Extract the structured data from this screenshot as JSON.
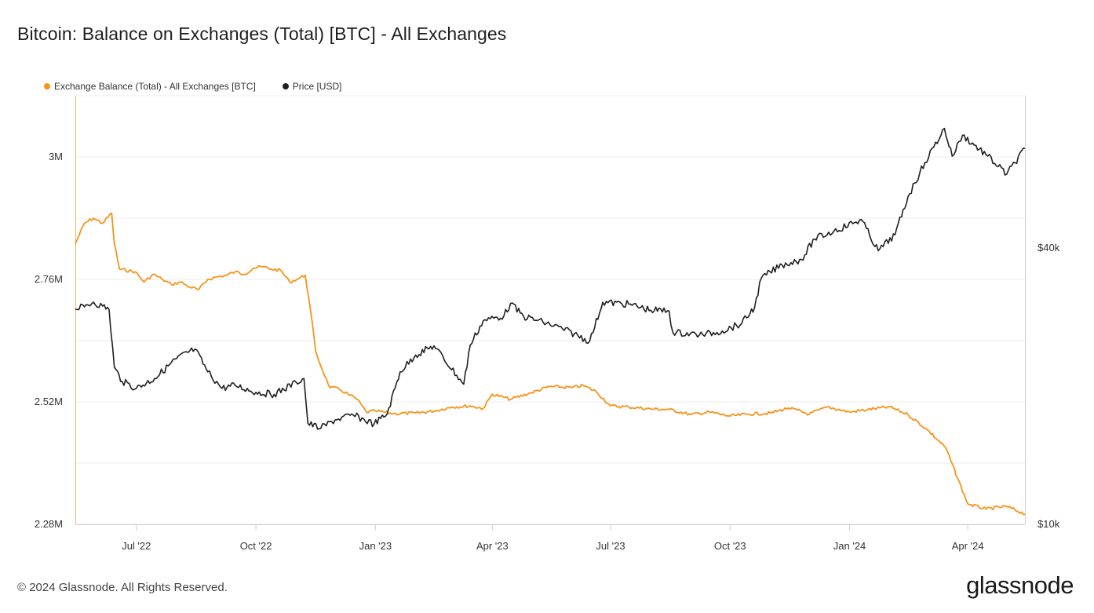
{
  "header": {
    "title": "Bitcoin: Balance on Exchanges (Total) [BTC] - All Exchanges"
  },
  "footer": {
    "copyright": "© 2024 Glassnode. All Rights Reserved.",
    "brand": "glassnode"
  },
  "colors": {
    "balance": "#f7931a",
    "price": "#1f1f1f",
    "grid": "#ececec",
    "axis": "#cfcfcf"
  },
  "chart_data": {
    "type": "line",
    "title": "Bitcoin: Balance on Exchanges (Total) [BTC] - All Exchanges",
    "legend": "top-left",
    "grid": true,
    "x_range": [
      "2022-05-15",
      "2024-05-15"
    ],
    "x_ticks": [
      {
        "label": "Jul '22",
        "date": "2022-07-01"
      },
      {
        "label": "Oct '22",
        "date": "2022-10-01"
      },
      {
        "label": "Jan '23",
        "date": "2023-01-01"
      },
      {
        "label": "Apr '23",
        "date": "2023-04-01"
      },
      {
        "label": "Jul '23",
        "date": "2023-07-01"
      },
      {
        "label": "Oct '23",
        "date": "2023-10-01"
      },
      {
        "label": "Jan '24",
        "date": "2024-01-01"
      },
      {
        "label": "Apr '24",
        "date": "2024-04-01"
      }
    ],
    "y_left": {
      "label": "",
      "range": [
        2280000,
        3120000
      ],
      "ticks": [
        {
          "label": "2.28M",
          "value": 2280000
        },
        {
          "label": "2.52M",
          "value": 2520000
        },
        {
          "label": "2.76M",
          "value": 2760000
        },
        {
          "label": "3M",
          "value": 3000000
        }
      ]
    },
    "y_right": {
      "label": "",
      "scale": "log",
      "range": [
        10000,
        86000
      ],
      "ticks": [
        {
          "label": "$10k",
          "value": 10000
        },
        {
          "label": "$40k",
          "value": 40000
        }
      ]
    },
    "series": [
      {
        "name": "Exchange Balance (Total) - All Exchanges [BTC]",
        "axis": "left",
        "color": "#f7931a",
        "points": [
          [
            "2022-05-15",
            2830000
          ],
          [
            "2022-05-22",
            2870000
          ],
          [
            "2022-05-29",
            2880000
          ],
          [
            "2022-06-05",
            2870000
          ],
          [
            "2022-06-12",
            2890000
          ],
          [
            "2022-06-14",
            2830000
          ],
          [
            "2022-06-18",
            2780000
          ],
          [
            "2022-06-30",
            2775000
          ],
          [
            "2022-07-07",
            2755000
          ],
          [
            "2022-07-14",
            2770000
          ],
          [
            "2022-07-21",
            2760000
          ],
          [
            "2022-07-28",
            2750000
          ],
          [
            "2022-08-04",
            2755000
          ],
          [
            "2022-08-11",
            2745000
          ],
          [
            "2022-08-18",
            2740000
          ],
          [
            "2022-08-25",
            2760000
          ],
          [
            "2022-09-01",
            2765000
          ],
          [
            "2022-09-08",
            2768000
          ],
          [
            "2022-09-15",
            2775000
          ],
          [
            "2022-09-22",
            2770000
          ],
          [
            "2022-09-29",
            2782000
          ],
          [
            "2022-10-06",
            2785000
          ],
          [
            "2022-10-13",
            2780000
          ],
          [
            "2022-10-20",
            2778000
          ],
          [
            "2022-10-27",
            2755000
          ],
          [
            "2022-11-03",
            2762000
          ],
          [
            "2022-11-08",
            2768000
          ],
          [
            "2022-11-12",
            2700000
          ],
          [
            "2022-11-16",
            2620000
          ],
          [
            "2022-11-20",
            2590000
          ],
          [
            "2022-11-27",
            2548000
          ],
          [
            "2022-12-04",
            2545000
          ],
          [
            "2022-12-11",
            2535000
          ],
          [
            "2022-12-18",
            2525000
          ],
          [
            "2022-12-25",
            2500000
          ],
          [
            "2023-01-01",
            2502000
          ],
          [
            "2023-01-15",
            2497000
          ],
          [
            "2023-02-01",
            2498000
          ],
          [
            "2023-02-15",
            2502000
          ],
          [
            "2023-03-01",
            2510000
          ],
          [
            "2023-03-15",
            2512000
          ],
          [
            "2023-03-25",
            2507000
          ],
          [
            "2023-04-01",
            2535000
          ],
          [
            "2023-04-15",
            2525000
          ],
          [
            "2023-05-01",
            2538000
          ],
          [
            "2023-05-15",
            2550000
          ],
          [
            "2023-06-01",
            2548000
          ],
          [
            "2023-06-10",
            2552000
          ],
          [
            "2023-06-20",
            2540000
          ],
          [
            "2023-07-01",
            2512000
          ],
          [
            "2023-07-15",
            2510000
          ],
          [
            "2023-08-01",
            2506000
          ],
          [
            "2023-08-15",
            2505000
          ],
          [
            "2023-09-01",
            2495000
          ],
          [
            "2023-09-15",
            2500000
          ],
          [
            "2023-10-01",
            2492000
          ],
          [
            "2023-10-15",
            2496000
          ],
          [
            "2023-11-01",
            2498000
          ],
          [
            "2023-11-15",
            2508000
          ],
          [
            "2023-12-01",
            2496000
          ],
          [
            "2023-12-15",
            2510000
          ],
          [
            "2024-01-01",
            2500000
          ],
          [
            "2024-01-15",
            2505000
          ],
          [
            "2024-02-01",
            2510000
          ],
          [
            "2024-02-15",
            2495000
          ],
          [
            "2024-03-01",
            2465000
          ],
          [
            "2024-03-15",
            2430000
          ],
          [
            "2024-04-01",
            2320000
          ],
          [
            "2024-04-15",
            2310000
          ],
          [
            "2024-05-01",
            2315000
          ],
          [
            "2024-05-15",
            2300000
          ]
        ]
      },
      {
        "name": "Price [USD]",
        "axis": "right",
        "color": "#1f1f1f",
        "points": [
          [
            "2022-05-15",
            29500
          ],
          [
            "2022-05-22",
            29800
          ],
          [
            "2022-05-29",
            30500
          ],
          [
            "2022-06-05",
            29900
          ],
          [
            "2022-06-10",
            29400
          ],
          [
            "2022-06-14",
            22000
          ],
          [
            "2022-06-20",
            20500
          ],
          [
            "2022-07-01",
            19800
          ],
          [
            "2022-07-15",
            20800
          ],
          [
            "2022-08-01",
            23000
          ],
          [
            "2022-08-15",
            24100
          ],
          [
            "2022-08-25",
            21500
          ],
          [
            "2022-09-05",
            19800
          ],
          [
            "2022-09-15",
            20100
          ],
          [
            "2022-10-01",
            19400
          ],
          [
            "2022-10-15",
            19200
          ],
          [
            "2022-11-01",
            20400
          ],
          [
            "2022-11-07",
            20800
          ],
          [
            "2022-11-10",
            16600
          ],
          [
            "2022-11-20",
            16200
          ],
          [
            "2022-12-01",
            16900
          ],
          [
            "2022-12-15",
            17300
          ],
          [
            "2022-12-31",
            16550
          ],
          [
            "2023-01-10",
            17400
          ],
          [
            "2023-01-20",
            21500
          ],
          [
            "2023-02-01",
            23400
          ],
          [
            "2023-02-15",
            24500
          ],
          [
            "2023-03-10",
            20200
          ],
          [
            "2023-03-15",
            24600
          ],
          [
            "2023-03-25",
            27800
          ],
          [
            "2023-04-10",
            28500
          ],
          [
            "2023-04-15",
            30300
          ],
          [
            "2023-04-25",
            28400
          ],
          [
            "2023-05-10",
            27600
          ],
          [
            "2023-05-25",
            26700
          ],
          [
            "2023-06-15",
            25100
          ],
          [
            "2023-06-25",
            30500
          ],
          [
            "2023-07-15",
            30200
          ],
          [
            "2023-08-01",
            29300
          ],
          [
            "2023-08-15",
            29200
          ],
          [
            "2023-08-18",
            26200
          ],
          [
            "2023-09-10",
            25900
          ],
          [
            "2023-09-25",
            26400
          ],
          [
            "2023-10-10",
            27400
          ],
          [
            "2023-10-20",
            29800
          ],
          [
            "2023-10-25",
            34400
          ],
          [
            "2023-11-10",
            36800
          ],
          [
            "2023-11-25",
            37800
          ],
          [
            "2023-12-05",
            41900
          ],
          [
            "2023-12-20",
            43600
          ],
          [
            "2024-01-10",
            46200
          ],
          [
            "2024-01-23",
            39500
          ],
          [
            "2024-02-05",
            42800
          ],
          [
            "2024-02-15",
            51800
          ],
          [
            "2024-02-28",
            61500
          ],
          [
            "2024-03-14",
            73000
          ],
          [
            "2024-03-20",
            63500
          ],
          [
            "2024-03-28",
            70500
          ],
          [
            "2024-04-15",
            64000
          ],
          [
            "2024-05-01",
            58000
          ],
          [
            "2024-05-15",
            66000
          ]
        ]
      }
    ]
  }
}
